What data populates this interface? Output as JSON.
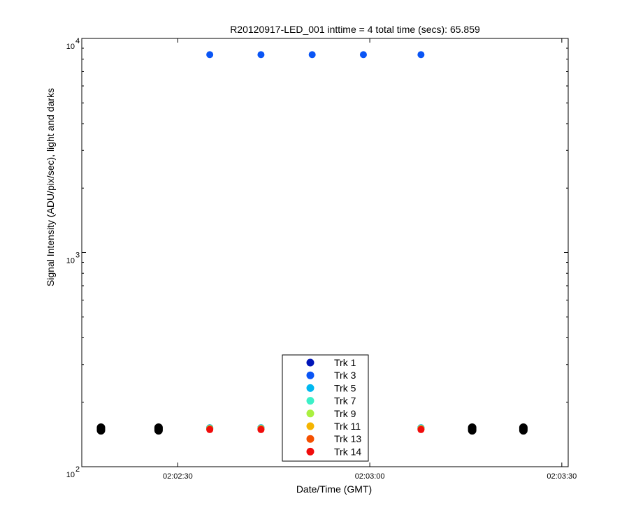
{
  "chart_data": {
    "type": "scatter",
    "title": "R20120917-LED_001 inttime = 4 total time (secs): 65.859",
    "xlabel": "Date/Time (GMT)",
    "ylabel": "Signal Intensity (ADU/pix/sec), light and darks",
    "xlim": [
      "02:02:15",
      "02:03:31"
    ],
    "ylim": [
      100,
      10000
    ],
    "yscale": "log",
    "x_ticks": [
      "02:02:30",
      "02:03:00",
      "02:03:30"
    ],
    "y_ticks": [
      {
        "base": "10",
        "exp": "2",
        "value": 100
      },
      {
        "base": "10",
        "exp": "3",
        "value": 1000
      },
      {
        "base": "10",
        "exp": "4",
        "value": 10000
      }
    ],
    "grid": false,
    "legend_position": "bottom-center",
    "series": [
      {
        "name": "Trk 1",
        "color": "#0015b8",
        "x": [
          "02:02:35",
          "02:02:43",
          "02:03:08"
        ],
        "y": [
          152,
          152,
          152
        ]
      },
      {
        "name": "Trk 3",
        "color": "#0a55f5",
        "x": [
          "02:02:35",
          "02:02:43",
          "02:02:51",
          "02:02:59",
          "02:03:08"
        ],
        "y": [
          8400,
          8400,
          8400,
          8400,
          8400
        ]
      },
      {
        "name": "Trk 5",
        "color": "#00b8f0",
        "x": [
          "02:02:35",
          "02:02:43",
          "02:03:08"
        ],
        "y": [
          152,
          152,
          152
        ]
      },
      {
        "name": "Trk 7",
        "color": "#3cf0c8",
        "x": [
          "02:02:35",
          "02:02:43",
          "02:03:08"
        ],
        "y": [
          151,
          151,
          151
        ]
      },
      {
        "name": "Trk 9",
        "color": "#aaf040",
        "x": [
          "02:02:35",
          "02:02:43",
          "02:03:08"
        ],
        "y": [
          151,
          151,
          151
        ]
      },
      {
        "name": "Trk 11",
        "color": "#f5b400",
        "x": [
          "02:02:35",
          "02:02:43",
          "02:03:08"
        ],
        "y": [
          150,
          150,
          150
        ]
      },
      {
        "name": "Trk 13",
        "color": "#f55000",
        "x": [
          "02:02:35",
          "02:02:43",
          "02:03:08"
        ],
        "y": [
          150,
          150,
          150
        ]
      },
      {
        "name": "Trk 14",
        "color": "#f00c0c",
        "x": [
          "02:02:35",
          "02:02:43",
          "02:03:08"
        ],
        "y": [
          149,
          149,
          149
        ]
      }
    ],
    "dark_points": {
      "color": "#000000",
      "x": [
        "02:02:18",
        "02:02:27",
        "02:03:16",
        "02:03:24"
      ],
      "y": [
        150,
        150,
        150,
        150
      ]
    }
  }
}
